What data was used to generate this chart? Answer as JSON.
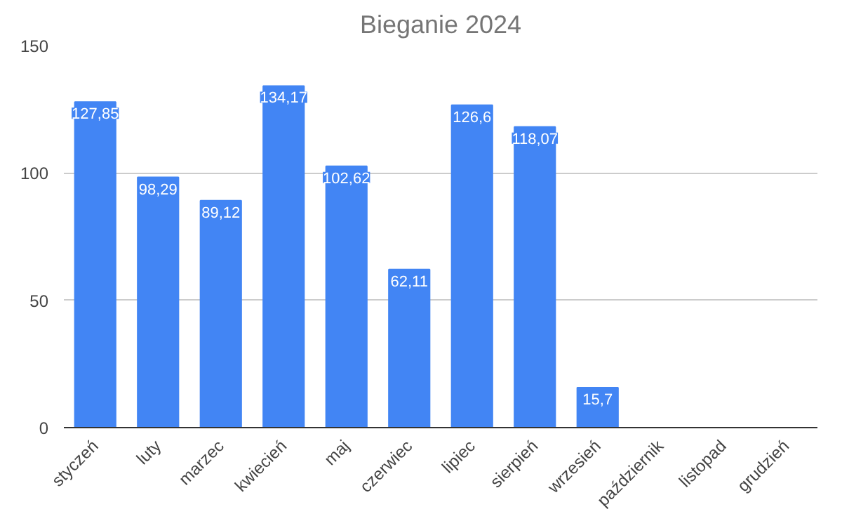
{
  "chart_data": {
    "type": "bar",
    "title": "Bieganie 2024",
    "categories": [
      "styczeń",
      "luty",
      "marzec",
      "kwiecień",
      "maj",
      "czerwiec",
      "lipiec",
      "sierpień",
      "wrzesień",
      "październik",
      "listopad",
      "grudzień"
    ],
    "values": [
      127.85,
      98.29,
      89.12,
      134.17,
      102.62,
      62.11,
      126.6,
      118.07,
      15.7,
      null,
      null,
      null
    ],
    "value_labels": [
      "127,85",
      "98,29",
      "89,12",
      "134,17",
      "102,62",
      "62,11",
      "126,6",
      "118,07",
      "15,7",
      null,
      null,
      null
    ],
    "color": "#4285f4",
    "ylim": [
      0,
      150
    ],
    "yticks": [
      0,
      50,
      100,
      150
    ],
    "grid": "y"
  }
}
